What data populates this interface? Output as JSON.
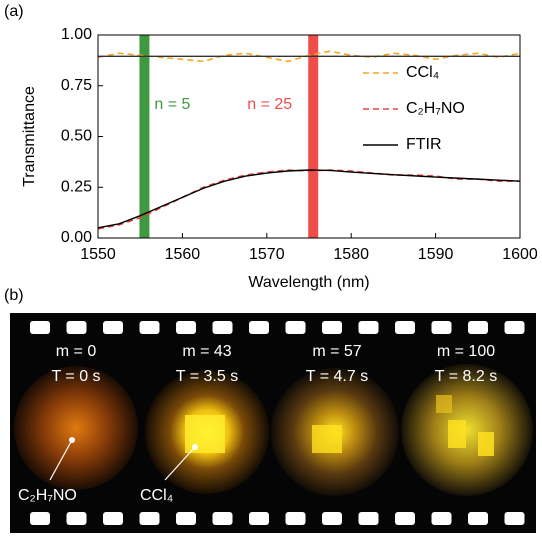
{
  "panel_a_label": "(a)",
  "chart_data": {
    "type": "line",
    "xlabel": "Wavelength (nm)",
    "ylabel": "Transmittance",
    "x": [
      1550,
      1552.5,
      1555,
      1557.5,
      1560,
      1562.5,
      1565,
      1567.5,
      1570,
      1572.5,
      1575,
      1577.5,
      1580,
      1582.5,
      1585,
      1587.5,
      1590,
      1592.5,
      1595,
      1597.5,
      1600
    ],
    "series": [
      {
        "name": "CCl₄",
        "color": "#f5a623",
        "dash": true,
        "values": [
          0.89,
          0.91,
          0.9,
          0.89,
          0.88,
          0.87,
          0.9,
          0.91,
          0.89,
          0.87,
          0.9,
          0.92,
          0.9,
          0.89,
          0.91,
          0.9,
          0.88,
          0.9,
          0.91,
          0.89,
          0.91
        ]
      },
      {
        "name": "C₂H₇NO",
        "color": "#e8413c",
        "dash": true,
        "values": [
          0.045,
          0.065,
          0.1,
          0.15,
          0.2,
          0.25,
          0.285,
          0.31,
          0.325,
          0.335,
          0.33,
          0.335,
          0.33,
          0.32,
          0.31,
          0.31,
          0.305,
          0.29,
          0.29,
          0.28,
          0.28
        ]
      },
      {
        "name": "FTIR",
        "color": "#000000",
        "dash": false,
        "values": [
          0.05,
          0.07,
          0.11,
          0.155,
          0.2,
          0.245,
          0.28,
          0.305,
          0.32,
          0.33,
          0.335,
          0.333,
          0.325,
          0.318,
          0.312,
          0.306,
          0.3,
          0.295,
          0.29,
          0.285,
          0.28
        ]
      },
      {
        "color": "#333333",
        "dash": false,
        "values": [
          0.895,
          0.895,
          0.895,
          0.895,
          0.895,
          0.895,
          0.895,
          0.895,
          0.895,
          0.895,
          0.895,
          0.895,
          0.895,
          0.895,
          0.895,
          0.895,
          0.895,
          0.895,
          0.895,
          0.895,
          0.895
        ]
      }
    ],
    "bands": [
      {
        "x": 1555.5,
        "color": "#3f9a3f",
        "label": "n = 5"
      },
      {
        "x": 1575.5,
        "color": "#ef4d4a",
        "label": "n = 25"
      }
    ],
    "xlim": [
      1550,
      1600
    ],
    "xticks": [
      1550,
      1560,
      1570,
      1580,
      1590,
      1600
    ],
    "ylim": [
      0,
      1
    ],
    "yticks": [
      {
        "value": 0,
        "label": "0.00"
      },
      {
        "value": 0.25,
        "label": "0.25"
      },
      {
        "value": 0.5,
        "label": "0.50"
      },
      {
        "value": 0.75,
        "label": "0.75"
      },
      {
        "value": 1,
        "label": "1.00"
      }
    ],
    "legend": "upper right"
  },
  "panel_b_label": "(b)",
  "frames": [
    {
      "m": "m = 0",
      "t": "T = 0 s"
    },
    {
      "m": "m = 43",
      "t": "T = 3.5 s"
    },
    {
      "m": "m = 57",
      "t": "T = 4.7 s"
    },
    {
      "m": "m = 100",
      "t": "T = 8.2 s"
    }
  ],
  "callouts": [
    "C₂H₇NO",
    "CCl₄"
  ]
}
